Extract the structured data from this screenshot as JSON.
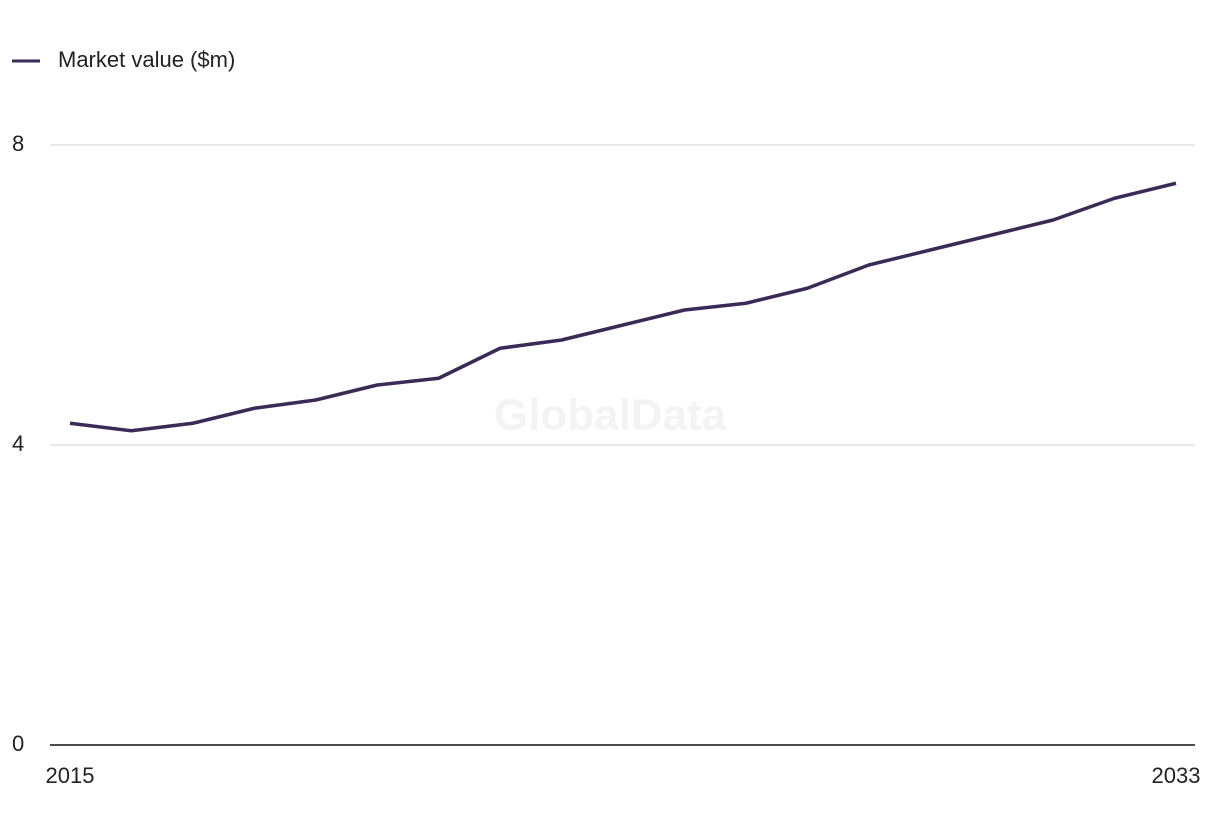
{
  "chart_data": {
    "type": "line",
    "watermark": "GlobalData",
    "x": [
      2015,
      2016,
      2017,
      2018,
      2019,
      2020,
      2021,
      2022,
      2023,
      2024,
      2025,
      2026,
      2027,
      2028,
      2029,
      2030,
      2031,
      2032,
      2033
    ],
    "series": [
      {
        "name": "Market value ($m)",
        "color": "#3a2a55",
        "values": [
          4.29,
          4.19,
          4.29,
          4.49,
          4.6,
          4.8,
          4.89,
          5.29,
          5.4,
          5.6,
          5.8,
          5.89,
          6.09,
          6.4,
          6.6,
          6.8,
          7.0,
          7.29,
          7.49
        ]
      }
    ],
    "xlim": [
      2015,
      2033
    ],
    "xticks": [
      2015,
      2033
    ],
    "ylim": [
      0,
      8
    ],
    "yticks": [
      0,
      4,
      8
    ],
    "grid": true
  }
}
